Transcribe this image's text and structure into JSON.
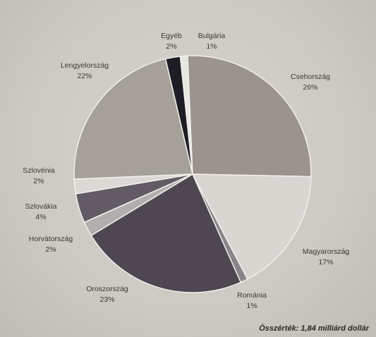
{
  "chart_data": {
    "type": "pie",
    "title": "",
    "total_note": "Összérték: 1,84 milliárd dollár",
    "slices": [
      {
        "label": "Bulgária",
        "value": 1,
        "value_label": "1%",
        "color": "#e9e7e2"
      },
      {
        "label": "Csehország",
        "value": 26,
        "value_label": "26%",
        "color": "#9a938e"
      },
      {
        "label": "Magyarország",
        "value": 17,
        "value_label": "17%",
        "color": "#d9d6d1"
      },
      {
        "label": "Románia",
        "value": 1,
        "value_label": "1%",
        "color": "#8a8489"
      },
      {
        "label": "Oroszország",
        "value": 23,
        "value_label": "23%",
        "color": "#4e4650"
      },
      {
        "label": "Horvátország",
        "value": 2,
        "value_label": "2%",
        "color": "#b2aeae"
      },
      {
        "label": "Szlovákia",
        "value": 4,
        "value_label": "4%",
        "color": "#625a64"
      },
      {
        "label": "Szlovénia",
        "value": 2,
        "value_label": "2%",
        "color": "#dcd9d5"
      },
      {
        "label": "Lengyelország",
        "value": 22,
        "value_label": "22%",
        "color": "#a6a09b"
      },
      {
        "label": "Egyéb",
        "value": 2,
        "value_label": "2%",
        "color": "#1e1c24"
      }
    ],
    "legend": "none"
  }
}
